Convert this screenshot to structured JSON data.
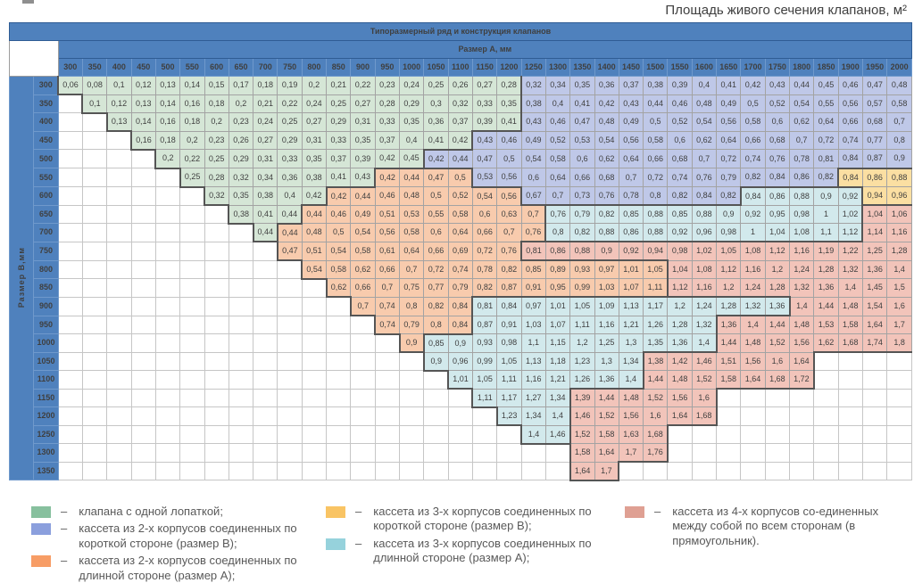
{
  "title": "Площадь живого сечения клапанов, м²",
  "colors": {
    "header_bg": "#4f81bd",
    "cell": {
      "green": "#d5e6d6",
      "blue": "#bfc8e8",
      "orange": "#f8cbad",
      "yellow": "#fbdfa2",
      "teal": "#d2e9ec",
      "pink": "#f2c4ba"
    },
    "legend_swatch": {
      "green": "#87c09e",
      "blue": "#8b9fdd",
      "orange": "#f79d66",
      "yellow": "#f9c464",
      "teal": "#96d2dc",
      "pink": "#dfa093"
    }
  },
  "table": {
    "band1": "Типоразмерный ряд и конструкция клапанов",
    "band2": "Размер А, мм",
    "row_axis": "Размер В,мм",
    "columns": [
      300,
      350,
      400,
      450,
      500,
      550,
      600,
      650,
      700,
      750,
      800,
      850,
      900,
      950,
      1000,
      1050,
      1100,
      1150,
      1200,
      1250,
      1300,
      1350,
      1400,
      1450,
      1500,
      1550,
      1600,
      1650,
      1700,
      1750,
      1800,
      1850,
      1900,
      1950,
      2000
    ],
    "rows": [
      {
        "b": "300",
        "start": 300,
        "segments": [
          {
            "color": "green",
            "values": [
              "0,06",
              "0,08",
              "0,1",
              "0,12",
              "0,13",
              "0,14",
              "0,15",
              "0,17",
              "0,18",
              "0,19",
              "0,2",
              "0,21",
              "0,22",
              "0,23",
              "0,24",
              "0,25",
              "0,26",
              "0,27",
              "0,28"
            ]
          },
          {
            "color": "blue",
            "values": [
              "0,32",
              "0,34",
              "0,35",
              "0,36",
              "0,37",
              "0,38",
              "0,39",
              "0,4",
              "0,41",
              "0,42",
              "0,43",
              "0,44",
              "0,45",
              "0,46",
              "0,47",
              "0,48"
            ]
          }
        ]
      },
      {
        "b": "350",
        "start": 350,
        "segments": [
          {
            "color": "green",
            "values": [
              "0,1",
              "0,12",
              "0,13",
              "0,14",
              "0,16",
              "0,18",
              "0,2",
              "0,21",
              "0,22",
              "0,24",
              "0,25",
              "0,27",
              "0,28",
              "0,29",
              "0,3",
              "0,32",
              "0,33",
              "0,35"
            ]
          },
          {
            "color": "blue",
            "values": [
              "0,38",
              "0,4",
              "0,41",
              "0,42",
              "0,43",
              "0,44",
              "0,46",
              "0,48",
              "0,49",
              "0,5",
              "0,52",
              "0,54",
              "0,55",
              "0,56",
              "0,57",
              "0,58"
            ]
          }
        ]
      },
      {
        "b": "400",
        "start": 400,
        "segments": [
          {
            "color": "green",
            "values": [
              "0,13",
              "0,14",
              "0,16",
              "0,18",
              "0,2",
              "0,23",
              "0,24",
              "0,25",
              "0,27",
              "0,29",
              "0,31",
              "0,33",
              "0,35",
              "0,36",
              "0,37",
              "0,39",
              "0,41"
            ]
          },
          {
            "color": "blue",
            "values": [
              "0,43",
              "0,46",
              "0,47",
              "0,48",
              "0,49",
              "0,5",
              "0,52",
              "0,54",
              "0,56",
              "0,58",
              "0,6",
              "0,62",
              "0,64",
              "0,66",
              "0,68",
              "0,7"
            ]
          }
        ]
      },
      {
        "b": "450",
        "start": 450,
        "segments": [
          {
            "color": "green",
            "values": [
              "0,16",
              "0,18",
              "0,2",
              "0,23",
              "0,26",
              "0,27",
              "0,29",
              "0,31",
              "0,33",
              "0,35",
              "0,37",
              "0,4",
              "0,41",
              "0,42"
            ]
          },
          {
            "color": "blue",
            "values": [
              "0,43",
              "0,46",
              "0,49",
              "0,52",
              "0,53",
              "0,54",
              "0,56",
              "0,58",
              "0,6",
              "0,62",
              "0,64",
              "0,66",
              "0,68",
              "0,7",
              "0,72",
              "0,74",
              "0,77",
              "0,8"
            ]
          }
        ]
      },
      {
        "b": "500",
        "start": 500,
        "segments": [
          {
            "color": "green",
            "values": [
              "0,2",
              "0,22",
              "0,25",
              "0,29",
              "0,31",
              "0,33",
              "0,35",
              "0,37",
              "0,39",
              "0,42",
              "0,45"
            ]
          },
          {
            "color": "blue",
            "values": [
              "0,42",
              "0,44",
              "0,47",
              "0,5",
              "0,54",
              "0,58",
              "0,6",
              "0,62",
              "0,64",
              "0,66",
              "0,68",
              "0,7",
              "0,72",
              "0,74",
              "0,76",
              "0,78",
              "0,81",
              "0,84",
              "0,87",
              "0,9"
            ]
          }
        ]
      },
      {
        "b": "550",
        "start": 550,
        "segments": [
          {
            "color": "green",
            "values": [
              "0,25",
              "0,28",
              "0,32",
              "0,34",
              "0,36",
              "0,38",
              "0,41",
              "0,43"
            ]
          },
          {
            "color": "orange",
            "values": [
              "0,42",
              "0,44",
              "0,47",
              "0,5"
            ]
          },
          {
            "color": "blue",
            "values": [
              "0,53",
              "0,56",
              "0,6",
              "0,64",
              "0,66",
              "0,68",
              "0,7",
              "0,72",
              "0,74",
              "0,76",
              "0,79",
              "0,82",
              "0,84",
              "0,86",
              "0,82"
            ]
          },
          {
            "color": "yellow",
            "values": [
              "0,84",
              "0,86",
              "0,88"
            ]
          }
        ]
      },
      {
        "b": "600",
        "start": 600,
        "segments": [
          {
            "color": "green",
            "values": [
              "0,32",
              "0,35",
              "0,38",
              "0,4",
              "0,42"
            ]
          },
          {
            "color": "orange",
            "values": [
              "0,42",
              "0,44",
              "0,46",
              "0,48",
              "0,5",
              "0,52",
              "0,54",
              "0,56"
            ]
          },
          {
            "color": "blue",
            "values": [
              "0,67",
              "0,7",
              "0,73",
              "0,76",
              "0,78",
              "0,8",
              "0,82",
              "0,84",
              "0,82"
            ]
          },
          {
            "color": "teal",
            "values": [
              "0,84",
              "0,86",
              "0,88",
              "0,9",
              "0,92"
            ]
          },
          {
            "color": "yellow",
            "values": [
              "0,94",
              "0,96"
            ]
          }
        ]
      },
      {
        "b": "650",
        "start": 650,
        "segments": [
          {
            "color": "green",
            "values": [
              "0,38",
              "0,41",
              "0,44"
            ]
          },
          {
            "color": "orange",
            "values": [
              "0,44",
              "0,46",
              "0,49",
              "0,51",
              "0,53",
              "0,55",
              "0,58",
              "0,6",
              "0,63",
              "0,7"
            ]
          },
          {
            "color": "teal",
            "values": [
              "0,76",
              "0,79",
              "0,82",
              "0,85",
              "0,88",
              "0,85",
              "0,88",
              "0,9",
              "0,92",
              "0,95",
              "0,98",
              "1",
              "1,02"
            ]
          },
          {
            "color": "pink",
            "values": [
              "1,04",
              "1,06"
            ]
          }
        ]
      },
      {
        "b": "700",
        "start": 700,
        "segments": [
          {
            "color": "green",
            "values": [
              "0,44"
            ]
          },
          {
            "color": "orange",
            "values": [
              "0,44",
              "0,48",
              "0,5",
              "0,54",
              "0,56",
              "0,58",
              "0,6",
              "0,64",
              "0,66",
              "0,7",
              "0,76"
            ]
          },
          {
            "color": "teal",
            "values": [
              "0,8",
              "0,82",
              "0,88",
              "0,86",
              "0,88",
              "0,92",
              "0,96",
              "0,98",
              "1",
              "1,04",
              "1,08",
              "1,1",
              "1,12"
            ]
          },
          {
            "color": "pink",
            "values": [
              "1,14",
              "1,16"
            ]
          }
        ]
      },
      {
        "b": "750",
        "start": 750,
        "segments": [
          {
            "color": "orange",
            "values": [
              "0,47",
              "0,51",
              "0,54",
              "0,58",
              "0,61",
              "0,64",
              "0,66",
              "0,69",
              "0,72",
              "0,76"
            ]
          },
          {
            "color": "pink",
            "values": [
              "0,81",
              "0,86",
              "0,88",
              "0,9",
              "0,92",
              "0,94",
              "0,98",
              "1,02",
              "1,05",
              "1,08",
              "1,12",
              "1,16",
              "1,19",
              "1,22",
              "1,25",
              "1,28"
            ]
          }
        ]
      },
      {
        "b": "800",
        "start": 800,
        "segments": [
          {
            "color": "orange",
            "values": [
              "0,54",
              "0,58",
              "0,62",
              "0,66",
              "0,7",
              "0,72",
              "0,74",
              "0,78",
              "0,82",
              "0,85",
              "0,89",
              "0,93",
              "0,97",
              "1,01",
              "1,05"
            ]
          },
          {
            "color": "pink",
            "values": [
              "1,04",
              "1,08",
              "1,12",
              "1,16",
              "1,2",
              "1,24",
              "1,28",
              "1,32",
              "1,36",
              "1,4"
            ]
          }
        ]
      },
      {
        "b": "850",
        "start": 850,
        "segments": [
          {
            "color": "orange",
            "values": [
              "0,62",
              "0,66",
              "0,7",
              "0,75",
              "0,77",
              "0,79",
              "0,82",
              "0,87",
              "0,91",
              "0,95",
              "0,99",
              "1,03",
              "1,07",
              "1,11"
            ]
          },
          {
            "color": "pink",
            "values": [
              "1,12",
              "1,16",
              "1,2",
              "1,24",
              "1,28",
              "1,32",
              "1,36",
              "1,4",
              "1,45",
              "1,5"
            ]
          }
        ]
      },
      {
        "b": "900",
        "start": 900,
        "segments": [
          {
            "color": "orange",
            "values": [
              "0,7",
              "0,74",
              "0,8",
              "0,82",
              "0,84"
            ]
          },
          {
            "color": "teal",
            "values": [
              "0,81",
              "0,84",
              "0,97",
              "1,01",
              "1,05",
              "1,09",
              "1,13",
              "1,17",
              "1,2",
              "1,24",
              "1,28",
              "1,32",
              "1,36"
            ]
          },
          {
            "color": "pink",
            "values": [
              "1,4",
              "1,44",
              "1,48",
              "1,54",
              "1,6"
            ]
          }
        ]
      },
      {
        "b": "950",
        "start": 950,
        "segments": [
          {
            "color": "orange",
            "values": [
              "0,74",
              "0,79",
              "0,8",
              "0,84"
            ]
          },
          {
            "color": "teal",
            "values": [
              "0,87",
              "0,91",
              "1,03",
              "1,07",
              "1,11",
              "1,16",
              "1,21",
              "1,26",
              "1,28",
              "1,32"
            ]
          },
          {
            "color": "pink",
            "values": [
              "1,36",
              "1,4",
              "1,44",
              "1,48",
              "1,53",
              "1,58",
              "1,64",
              "1,7"
            ]
          }
        ]
      },
      {
        "b": "1000",
        "start": 1000,
        "segments": [
          {
            "color": "orange",
            "values": [
              "0,9"
            ]
          },
          {
            "color": "teal",
            "values": [
              "0,85",
              "0,9",
              "0,93",
              "0,98",
              "1,1",
              "1,15",
              "1,2",
              "1,25",
              "1,3",
              "1,35",
              "1,36",
              "1,4"
            ]
          },
          {
            "color": "pink",
            "values": [
              "1,44",
              "1,48",
              "1,52",
              "1,56",
              "1,62",
              "1,68",
              "1,74",
              "1,8"
            ]
          }
        ]
      },
      {
        "b": "1050",
        "start": 1050,
        "segments": [
          {
            "color": "teal",
            "values": [
              "0,9",
              "0,96",
              "0,99",
              "1,05",
              "1,13",
              "1,18",
              "1,23",
              "1,3",
              "1,34"
            ]
          },
          {
            "color": "pink",
            "values": [
              "1,38",
              "1,42",
              "1,46",
              "1,51",
              "1,56",
              "1,6",
              "1,64"
            ]
          }
        ]
      },
      {
        "b": "1100",
        "start": 1100,
        "segments": [
          {
            "color": "teal",
            "values": [
              "1,01",
              "1,05",
              "1,11",
              "1,16",
              "1,21",
              "1,26",
              "1,36",
              "1,4"
            ]
          },
          {
            "color": "pink",
            "values": [
              "1,44",
              "1,48",
              "1,52",
              "1,58",
              "1,64",
              "1,68",
              "1,72"
            ]
          }
        ]
      },
      {
        "b": "1150",
        "start": 1150,
        "segments": [
          {
            "color": "teal",
            "values": [
              "1,11",
              "1,17",
              "1,27",
              "1,34"
            ]
          },
          {
            "color": "pink",
            "values": [
              "1,39",
              "1,44",
              "1,48",
              "1,52",
              "1,56",
              "1,6"
            ]
          }
        ]
      },
      {
        "b": "1200",
        "start": 1200,
        "segments": [
          {
            "color": "teal",
            "values": [
              "1,23",
              "1,34",
              "1,4"
            ]
          },
          {
            "color": "pink",
            "values": [
              "1,46",
              "1,52",
              "1,56",
              "1,6",
              "1,64",
              "1,68"
            ]
          }
        ]
      },
      {
        "b": "1250",
        "start": 1250,
        "segments": [
          {
            "color": "teal",
            "values": [
              "1,4",
              "1,46"
            ]
          },
          {
            "color": "pink",
            "values": [
              "1,52",
              "1,58",
              "1,63",
              "1,68"
            ]
          }
        ]
      },
      {
        "b": "1300",
        "start": 1350,
        "segments": [
          {
            "color": "pink",
            "values": [
              "1,58",
              "1,64",
              "1,7",
              "1,76"
            ]
          }
        ]
      },
      {
        "b": "1350",
        "start": 1350,
        "segments": [
          {
            "color": "pink",
            "values": [
              "1,64",
              "1,7"
            ]
          }
        ]
      }
    ]
  },
  "legend": {
    "columns": [
      {
        "items": [
          {
            "color": "green",
            "text": "клапана с одной лопаткой;"
          },
          {
            "color": "blue",
            "text": "кассета из 2-х корпусов соединенных по короткой стороне (размер В);"
          },
          {
            "color": "orange",
            "text": "кассета из 2-х корпусов соединенных по длинной стороне (размер А);"
          }
        ]
      },
      {
        "items": [
          {
            "color": "yellow",
            "text": "кассета из 3-х корпусов соединенных по короткой стороне (размер В);"
          },
          {
            "color": "teal",
            "text": "кассета из 3-х корпусов соединенных по длинной стороне (размер А);"
          }
        ]
      },
      {
        "items": [
          {
            "color": "pink",
            "text": "кассета из 4-х корпусов со-единенных между собой по всем сторонам (в прямоугольник)."
          }
        ]
      }
    ],
    "dash": "–"
  }
}
